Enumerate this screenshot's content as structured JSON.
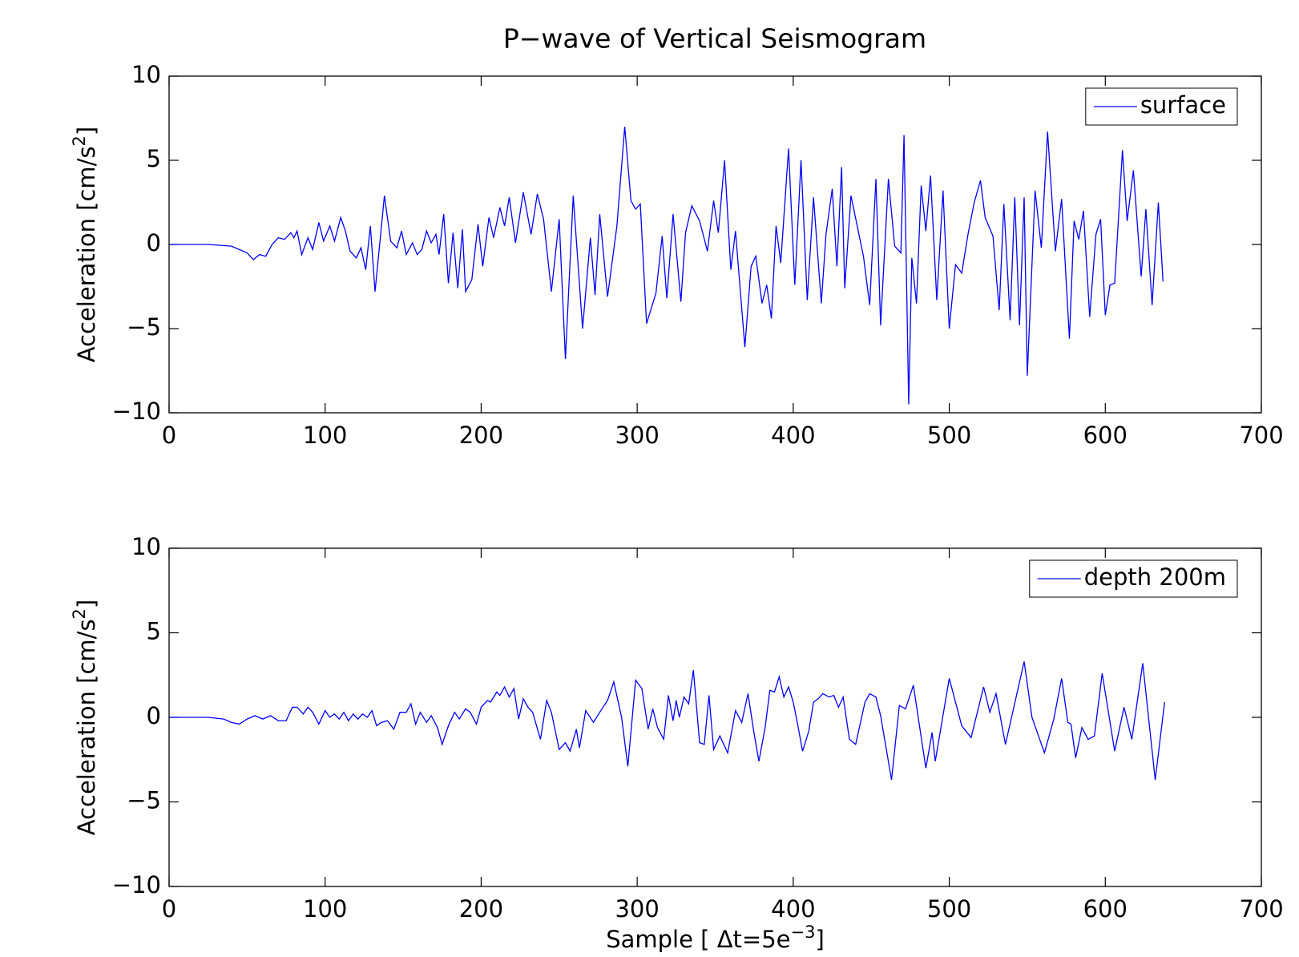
{
  "title": "P−wave of Vertical Seismogram",
  "chart_data": [
    {
      "type": "line",
      "y_label": {
        "text": "Acceleration [cm/s",
        "superscript": "2",
        "suffix": "]"
      },
      "xlim": [
        0,
        700
      ],
      "xticks": [
        0,
        100,
        200,
        300,
        400,
        500,
        600,
        700
      ],
      "ylim": [
        -10,
        10
      ],
      "yticks": [
        {
          "value": -10,
          "label": "−10"
        },
        {
          "value": -5,
          "label": "−5"
        },
        0,
        5,
        10
      ],
      "legend": "upper right",
      "grid": false,
      "x": [
        0,
        25,
        40,
        50,
        54,
        58,
        62,
        66,
        70,
        74,
        78,
        80,
        82,
        85,
        89,
        92,
        96,
        99,
        103,
        106,
        110,
        113,
        116,
        120,
        123,
        126,
        129,
        132,
        138,
        142,
        146,
        149,
        152,
        156,
        159,
        162,
        165,
        168,
        171,
        173,
        176,
        179,
        182,
        185,
        188,
        190,
        194,
        198,
        201,
        205,
        208,
        212,
        215,
        218,
        222,
        227,
        232,
        236,
        240,
        245,
        250,
        254,
        259,
        265,
        270,
        273,
        276,
        281,
        287,
        292,
        296,
        299,
        302,
        306,
        312,
        316,
        319,
        323,
        328,
        331,
        335,
        340,
        345,
        349,
        352,
        356,
        360,
        363,
        369,
        373,
        376,
        380,
        383,
        386,
        389,
        392,
        397,
        401,
        405,
        409,
        413,
        418,
        421,
        425,
        428,
        431,
        433,
        437,
        441,
        445,
        449,
        453,
        456,
        461,
        465,
        469,
        471,
        474,
        476,
        479,
        482,
        485,
        488,
        492,
        496,
        500,
        504,
        508,
        512,
        516,
        520,
        523,
        528,
        532,
        535,
        539,
        542,
        545,
        548,
        550,
        555,
        559,
        563,
        568,
        572,
        577,
        580,
        583,
        586,
        590,
        594,
        597,
        600,
        603,
        606,
        611,
        614,
        618,
        623,
        626,
        630,
        634,
        637
      ],
      "series": [
        {
          "name": "surface",
          "color": "#0000ff",
          "values": [
            0,
            0,
            -0.1,
            -0.5,
            -0.9,
            -0.6,
            -0.7,
            0,
            0.4,
            0.3,
            0.7,
            0.4,
            0.8,
            -0.6,
            0.4,
            -0.3,
            1.3,
            0.2,
            1.1,
            0.2,
            1.6,
            0.8,
            -0.4,
            -0.8,
            -0.2,
            -1.5,
            1.1,
            -2.8,
            2.9,
            0.2,
            -0.2,
            0.8,
            -0.6,
            0.1,
            -0.6,
            -0.3,
            0.8,
            0.1,
            0.6,
            -0.6,
            1.8,
            -2.3,
            0.7,
            -2.6,
            0.9,
            -2.8,
            -2.1,
            1.2,
            -1.3,
            1.6,
            0.4,
            2.2,
            1.1,
            2.8,
            0.1,
            3.1,
            0.6,
            3,
            1.5,
            -2.8,
            1.5,
            -6.8,
            2.9,
            -5,
            0.4,
            -3,
            1.8,
            -3.1,
            1.1,
            7,
            2.6,
            2.1,
            2.4,
            -4.7,
            -2.9,
            0.5,
            -3.2,
            1.8,
            -3.4,
            0.7,
            2.3,
            1.4,
            -0.4,
            2.6,
            0.7,
            5,
            -1.5,
            0.8,
            -6.1,
            -1.3,
            -0.7,
            -3.5,
            -2.4,
            -4.4,
            1.1,
            -1.1,
            5.7,
            -2.4,
            5,
            -3.3,
            2.8,
            -3.5,
            0.6,
            3.3,
            -1.3,
            4.6,
            -2.6,
            2.9,
            1.1,
            -0.7,
            -3.6,
            3.9,
            -4.8,
            3.9,
            -0.1,
            -0.5,
            6.5,
            -9.5,
            -0.8,
            -3.5,
            3.5,
            0.8,
            4.1,
            -3.3,
            3.2,
            -5,
            -1.2,
            -1.7,
            0.6,
            2.5,
            3.8,
            1.6,
            0.5,
            -3.9,
            2.4,
            -4.5,
            2.8,
            -4.8,
            2.8,
            -7.8,
            3.2,
            -0.2,
            6.7,
            -0.4,
            2.7,
            -5.6,
            1.4,
            0.3,
            2,
            -4.3,
            0.6,
            1.5,
            -4.2,
            -2.4,
            -2.3,
            5.6,
            1.4,
            4.4,
            -1.9,
            2.1,
            -3.6,
            2.5,
            -2.2
          ]
        }
      ]
    },
    {
      "type": "line",
      "y_label": {
        "text": "Acceleration [cm/s",
        "superscript": "2",
        "suffix": "]"
      },
      "x_label": {
        "text": "Sample [ Δt=5e",
        "superscript": "−3",
        "suffix": "]"
      },
      "xlim": [
        0,
        700
      ],
      "xticks": [
        0,
        100,
        200,
        300,
        400,
        500,
        600,
        700
      ],
      "ylim": [
        -10,
        10
      ],
      "yticks": [
        {
          "value": -10,
          "label": "−10"
        },
        {
          "value": -5,
          "label": "−5"
        },
        0,
        5,
        10
      ],
      "legend": "upper right",
      "grid": false,
      "x": [
        0,
        25,
        35,
        40,
        45,
        50,
        55,
        60,
        65,
        70,
        75,
        79,
        82,
        86,
        89,
        92,
        96,
        100,
        103,
        106,
        109,
        112,
        115,
        118,
        121,
        124,
        127,
        130,
        133,
        136,
        140,
        144,
        148,
        152,
        155,
        158,
        161,
        165,
        168,
        172,
        175,
        179,
        183,
        186,
        190,
        193,
        197,
        200,
        204,
        206,
        210,
        212,
        215,
        218,
        221,
        224,
        227,
        230,
        233,
        238,
        242,
        245,
        250,
        254,
        257,
        261,
        263,
        267,
        272,
        276,
        281,
        285,
        290,
        294,
        299,
        303,
        307,
        310,
        313,
        317,
        320,
        323,
        325,
        327,
        330,
        333,
        336,
        340,
        343,
        346,
        349,
        353,
        358,
        363,
        367,
        371,
        375,
        378,
        382,
        385,
        388,
        391,
        394,
        397,
        400,
        403,
        406,
        410,
        413,
        416,
        419,
        423,
        426,
        429,
        432,
        436,
        440,
        446,
        449,
        453,
        456,
        463,
        468,
        472,
        477,
        485,
        489,
        491,
        500,
        508,
        514,
        522,
        526,
        530,
        536,
        548,
        553,
        561,
        567,
        572,
        576,
        578,
        581,
        585,
        589,
        593,
        598,
        606,
        612,
        617,
        624,
        632,
        638
      ],
      "series": [
        {
          "name": "depth 200m",
          "color": "#0000ff",
          "values": [
            0,
            0,
            -0.1,
            -0.3,
            -0.4,
            -0.1,
            0.1,
            -0.1,
            0.1,
            -0.2,
            -0.2,
            0.6,
            0.6,
            0.2,
            0.6,
            0.3,
            -0.4,
            0.4,
            0,
            0.2,
            -0.1,
            0.3,
            -0.2,
            0.2,
            -0.1,
            0.2,
            0,
            0.4,
            -0.5,
            -0.3,
            -0.2,
            -0.7,
            0.3,
            0.3,
            0.8,
            -0.4,
            0.3,
            -0.3,
            0.1,
            -0.6,
            -1.6,
            -0.5,
            0.3,
            -0.1,
            0.5,
            0.3,
            -0.4,
            0.6,
            1,
            0.9,
            1.5,
            1.3,
            1.8,
            1.2,
            1.7,
            -0.1,
            1.1,
            0.6,
            0.3,
            -1.3,
            1,
            0.3,
            -1.9,
            -1.5,
            -2,
            -0.7,
            -1.8,
            0.4,
            -0.3,
            0.3,
            1,
            2.1,
            0,
            -2.9,
            2.2,
            1.7,
            -0.7,
            0.5,
            -0.6,
            -1.3,
            1.3,
            -0.2,
            1,
            0,
            1.2,
            0.8,
            2.8,
            -1.5,
            -1.6,
            1.3,
            -1.9,
            -1.1,
            -2.1,
            0.4,
            -0.3,
            1.4,
            -1,
            -2.6,
            -0.6,
            1.6,
            1.5,
            2.4,
            1.2,
            1.8,
            0.9,
            -0.5,
            -2,
            -0.8,
            0.9,
            1.1,
            1.4,
            1.2,
            1.3,
            0.6,
            1.2,
            -1.3,
            -1.6,
            0.9,
            1.4,
            1.2,
            0.1,
            -3.7,
            0.7,
            0.5,
            1.9,
            -3,
            -0.9,
            -2.6,
            2.3,
            -0.5,
            -1.2,
            1.8,
            0.3,
            1.4,
            -1.6,
            3.3,
            0,
            -2.1,
            -0.1,
            2.3,
            -0.3,
            -0.4,
            -2.4,
            -0.6,
            -1.3,
            -1.1,
            2.6,
            -2,
            0.6,
            -1.3,
            3.2,
            -3.7,
            0.9
          ]
        }
      ]
    }
  ]
}
